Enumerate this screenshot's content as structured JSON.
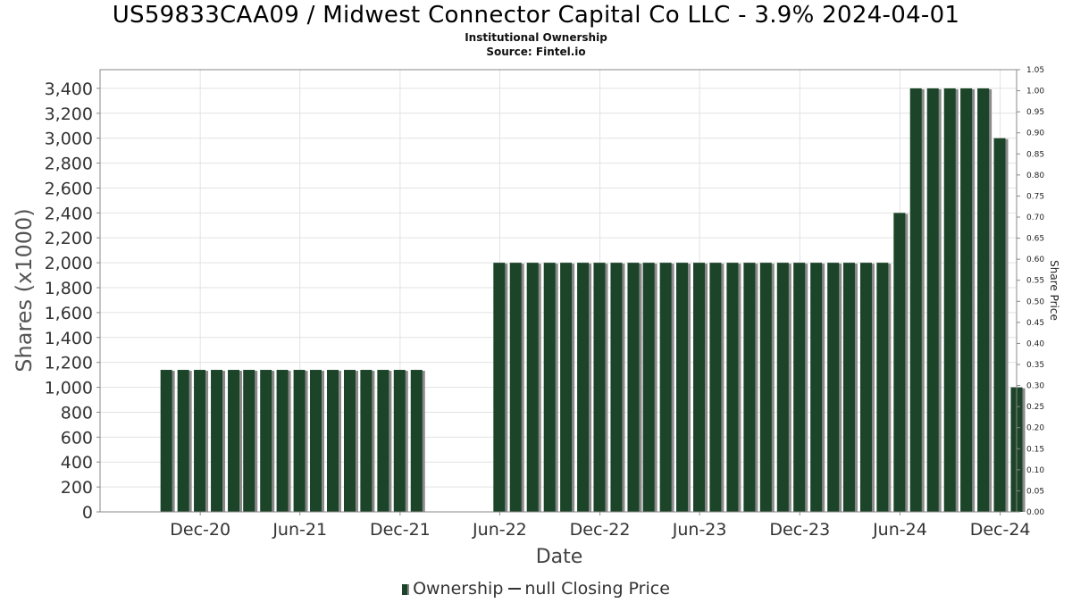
{
  "header": {
    "title": "US59833CAA09 / Midwest Connector Capital Co LLC - 3.9% 2024-04-01",
    "subtitle": "Institutional Ownership",
    "source": "Source: Fintel.io"
  },
  "legend": {
    "ownership": "Ownership",
    "price": "null Closing Price"
  },
  "colors": {
    "bar": "#1c4428",
    "bar_shadow": "#8a8a8a",
    "grid": "#e2e2e2",
    "axis": "#888888"
  },
  "chart_data": {
    "type": "bar",
    "xlabel": "Date",
    "ylabel": "Shares (x1000)",
    "y2label": "Share Price",
    "ylim": [
      0,
      3550
    ],
    "y2lim": [
      0,
      1.05
    ],
    "grid": true,
    "legend_position": "bottom",
    "yticks": [
      {
        "value": 0,
        "label": "0"
      },
      {
        "value": 200,
        "label": "200"
      },
      {
        "value": 400,
        "label": "400"
      },
      {
        "value": 600,
        "label": "600"
      },
      {
        "value": 800,
        "label": "800"
      },
      {
        "value": 1000,
        "label": "1,000"
      },
      {
        "value": 1200,
        "label": "1,200"
      },
      {
        "value": 1400,
        "label": "1,400"
      },
      {
        "value": 1600,
        "label": "1,600"
      },
      {
        "value": 1800,
        "label": "1,800"
      },
      {
        "value": 2000,
        "label": "2,000"
      },
      {
        "value": 2200,
        "label": "2,200"
      },
      {
        "value": 2400,
        "label": "2,400"
      },
      {
        "value": 2600,
        "label": "2,600"
      },
      {
        "value": 2800,
        "label": "2,800"
      },
      {
        "value": 3000,
        "label": "3,000"
      },
      {
        "value": 3200,
        "label": "3,200"
      },
      {
        "value": 3400,
        "label": "3,400"
      }
    ],
    "y2ticks": [
      {
        "value": 0,
        "label": "0.00"
      },
      {
        "value": 0.05,
        "label": "0.05"
      },
      {
        "value": 0.1,
        "label": "0.10"
      },
      {
        "value": 0.15,
        "label": "0.15"
      },
      {
        "value": 0.2,
        "label": "0.20"
      },
      {
        "value": 0.25,
        "label": "0.25"
      },
      {
        "value": 0.3,
        "label": "0.30"
      },
      {
        "value": 0.35,
        "label": "0.35"
      },
      {
        "value": 0.4,
        "label": "0.40"
      },
      {
        "value": 0.45,
        "label": "0.45"
      },
      {
        "value": 0.5,
        "label": "0.50"
      },
      {
        "value": 0.55,
        "label": "0.55"
      },
      {
        "value": 0.6,
        "label": "0.60"
      },
      {
        "value": 0.65,
        "label": "0.65"
      },
      {
        "value": 0.7,
        "label": "0.70"
      },
      {
        "value": 0.75,
        "label": "0.75"
      },
      {
        "value": 0.8,
        "label": "0.80"
      },
      {
        "value": 0.85,
        "label": "0.85"
      },
      {
        "value": 0.9,
        "label": "0.90"
      },
      {
        "value": 0.95,
        "label": "0.95"
      },
      {
        "value": 1.0,
        "label": "1.00"
      },
      {
        "value": 1.05,
        "label": "1.05"
      }
    ],
    "xticks": [
      "Dec-20",
      "Jun-21",
      "Dec-21",
      "Jun-22",
      "Dec-22",
      "Jun-23",
      "Dec-23",
      "Jun-24",
      "Dec-24"
    ],
    "x_range": [
      "2020-06-01",
      "2024-12-31"
    ],
    "series": [
      {
        "name": "Ownership",
        "points": [
          {
            "date": "2020-09-30",
            "value": 1140
          },
          {
            "date": "2020-10-31",
            "value": 1140
          },
          {
            "date": "2020-11-30",
            "value": 1140
          },
          {
            "date": "2020-12-31",
            "value": 1140
          },
          {
            "date": "2021-01-31",
            "value": 1140
          },
          {
            "date": "2021-02-28",
            "value": 1140
          },
          {
            "date": "2021-03-31",
            "value": 1140
          },
          {
            "date": "2021-04-30",
            "value": 1140
          },
          {
            "date": "2021-05-31",
            "value": 1140
          },
          {
            "date": "2021-06-30",
            "value": 1140
          },
          {
            "date": "2021-07-31",
            "value": 1140
          },
          {
            "date": "2021-08-31",
            "value": 1140
          },
          {
            "date": "2021-09-30",
            "value": 1140
          },
          {
            "date": "2021-10-31",
            "value": 1140
          },
          {
            "date": "2021-11-30",
            "value": 1140
          },
          {
            "date": "2021-12-31",
            "value": 1140
          },
          {
            "date": "2022-05-31",
            "value": 2000
          },
          {
            "date": "2022-06-30",
            "value": 2000
          },
          {
            "date": "2022-07-31",
            "value": 2000
          },
          {
            "date": "2022-08-31",
            "value": 2000
          },
          {
            "date": "2022-09-30",
            "value": 2000
          },
          {
            "date": "2022-10-31",
            "value": 2000
          },
          {
            "date": "2022-11-30",
            "value": 2000
          },
          {
            "date": "2022-12-31",
            "value": 2000
          },
          {
            "date": "2023-01-31",
            "value": 2000
          },
          {
            "date": "2023-02-28",
            "value": 2000
          },
          {
            "date": "2023-03-31",
            "value": 2000
          },
          {
            "date": "2023-04-30",
            "value": 2000
          },
          {
            "date": "2023-05-31",
            "value": 2000
          },
          {
            "date": "2023-06-30",
            "value": 2000
          },
          {
            "date": "2023-07-31",
            "value": 2000
          },
          {
            "date": "2023-08-31",
            "value": 2000
          },
          {
            "date": "2023-09-30",
            "value": 2000
          },
          {
            "date": "2023-10-31",
            "value": 2000
          },
          {
            "date": "2023-11-30",
            "value": 2000
          },
          {
            "date": "2023-12-31",
            "value": 2000
          },
          {
            "date": "2024-01-31",
            "value": 2000
          },
          {
            "date": "2024-02-29",
            "value": 2000
          },
          {
            "date": "2024-03-31",
            "value": 2000
          },
          {
            "date": "2024-04-30",
            "value": 2000
          },
          {
            "date": "2024-05-31",
            "value": 2400
          },
          {
            "date": "2024-06-30",
            "value": 3400
          },
          {
            "date": "2024-07-31",
            "value": 3400
          },
          {
            "date": "2024-08-31",
            "value": 3400
          },
          {
            "date": "2024-09-30",
            "value": 3400
          },
          {
            "date": "2024-10-31",
            "value": 3400
          },
          {
            "date": "2024-11-30",
            "value": 3000
          },
          {
            "date": "2024-12-31",
            "value": 1000
          }
        ]
      }
    ]
  }
}
